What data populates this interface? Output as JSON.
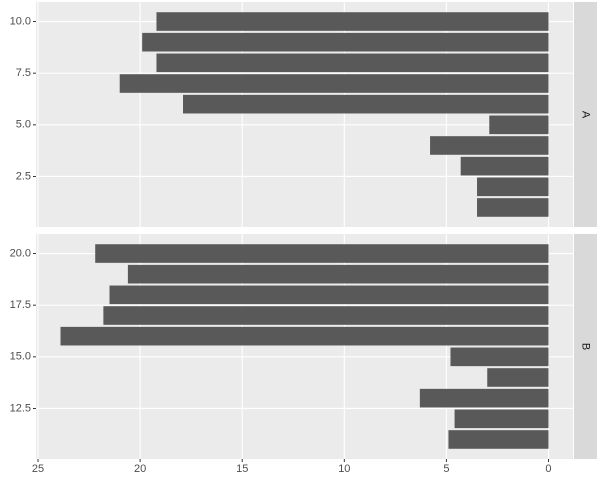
{
  "chart_data": {
    "type": "bar",
    "orientation": "horizontal",
    "color": "#595959",
    "grid": true,
    "xlim": [
      25.1,
      -1.2
    ],
    "xticks": [
      25,
      20,
      15,
      10,
      5,
      0
    ],
    "panels": [
      {
        "label": "A",
        "y": [
          1,
          2,
          3,
          4,
          5,
          6,
          7,
          8,
          9,
          10
        ],
        "values": [
          3.5,
          3.5,
          4.3,
          5.8,
          2.9,
          17.9,
          21.0,
          19.2,
          19.9,
          19.2
        ],
        "ylim": [
          0.055,
          10.945
        ],
        "yticks": [
          {
            "value": 2.5,
            "label": "2.5"
          },
          {
            "value": 5,
            "label": "5.0"
          },
          7.5,
          {
            "value": 10,
            "label": "10.0"
          }
        ]
      },
      {
        "label": "B",
        "y": [
          11,
          12,
          13,
          14,
          15,
          16,
          17,
          18,
          19,
          20
        ],
        "values": [
          4.9,
          4.6,
          6.3,
          3.0,
          4.8,
          23.9,
          21.8,
          21.5,
          20.6,
          22.2
        ],
        "ylim": [
          10.055,
          20.945
        ],
        "yticks": [
          12.5,
          {
            "value": 15,
            "label": "15.0"
          },
          17.5,
          {
            "value": 20,
            "label": "20.0"
          }
        ]
      }
    ]
  }
}
